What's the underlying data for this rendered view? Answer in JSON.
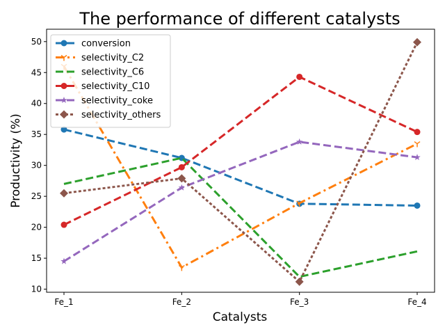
{
  "chart_data": {
    "type": "line",
    "title": "The performance of different catalysts",
    "xlabel": "Catalysts",
    "ylabel": "Productivity (%)",
    "categories": [
      "Fe_1",
      "Fe_2",
      "Fe_3",
      "Fe_4"
    ],
    "ylim": [
      9.5,
      52
    ],
    "yticks": [
      10,
      15,
      20,
      25,
      30,
      35,
      40,
      45,
      50
    ],
    "grid": false,
    "legend": "top-left",
    "series": [
      {
        "name": "conversion",
        "values": [
          35.8,
          31.2,
          23.8,
          23.5
        ],
        "color": "#1f77b4",
        "dash": "dashed",
        "marker": "circle"
      },
      {
        "name": "selectivity_C2",
        "values": [
          46.0,
          13.5,
          23.9,
          33.5
        ],
        "color": "#ff7f0e",
        "dash": "dashdot",
        "marker": "tri"
      },
      {
        "name": "selectivity_C6",
        "values": [
          27.0,
          31.2,
          12.0,
          16.1
        ],
        "color": "#2ca02c",
        "dash": "dashed",
        "marker": "none"
      },
      {
        "name": "selectivity_C10",
        "values": [
          20.4,
          29.7,
          44.3,
          35.4
        ],
        "color": "#d62728",
        "dash": "dashed",
        "marker": "circle"
      },
      {
        "name": "selectivity_coke",
        "values": [
          14.5,
          26.4,
          33.8,
          31.3
        ],
        "color": "#9467bd",
        "dash": "dashed",
        "marker": "star"
      },
      {
        "name": "selectivity_others",
        "values": [
          25.5,
          27.9,
          11.2,
          49.9
        ],
        "color": "#8c564b",
        "dash": "dotted",
        "marker": "diamond"
      }
    ]
  }
}
